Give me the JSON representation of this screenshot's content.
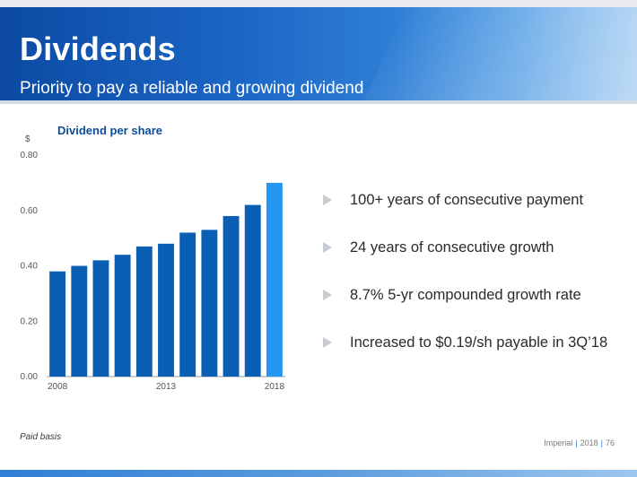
{
  "header": {
    "title": "Dividends",
    "subtitle": "Priority to pay a reliable and growing dividend"
  },
  "bullets": [
    "100+ years of consecutive payment",
    "24 years of consecutive growth",
    "8.7% 5-yr compounded growth rate",
    "Increased to $0.19/sh payable in 3Q’18"
  ],
  "footnote": "Paid basis",
  "footer": {
    "company": "Imperial",
    "year": "2018",
    "page": "76"
  },
  "colors": {
    "bar": "#0a5fb4",
    "highlight_bar": "#2196f3",
    "chart_title": "#0b4d99"
  },
  "chart_data": {
    "type": "bar",
    "title": "Dividend per share",
    "ylabel": "$",
    "xlabel": "",
    "categories": [
      "2008",
      "2009",
      "2010",
      "2011",
      "2012",
      "2013",
      "2014",
      "2015",
      "2016",
      "2017",
      "2018"
    ],
    "x_tick_labels": {
      "2008": "2008",
      "2013": "2013",
      "2018": "2018"
    },
    "values": [
      0.38,
      0.4,
      0.42,
      0.44,
      0.47,
      0.48,
      0.52,
      0.53,
      0.58,
      0.62,
      0.7
    ],
    "highlight_category": "2018",
    "ylim": [
      0,
      0.8
    ],
    "yticks": [
      "0.00",
      "0.20",
      "0.40",
      "0.60",
      "0.80"
    ],
    "grid": false,
    "legend": "none"
  }
}
